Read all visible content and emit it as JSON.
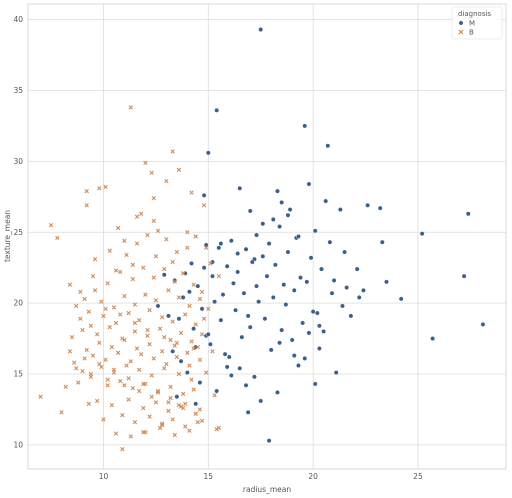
{
  "chart_data": {
    "type": "scatter",
    "xlabel": "radius_mean",
    "ylabel": "texture_mean",
    "xlim": [
      6.4,
      29.2
    ],
    "ylim": [
      8.3,
      41.1
    ],
    "xticks": [
      10,
      15,
      20,
      25
    ],
    "yticks": [
      10,
      15,
      20,
      25,
      30,
      35,
      40
    ],
    "grid": true,
    "legend": {
      "title": "diagnosis",
      "placement": "top-right",
      "entries": [
        {
          "label": "M",
          "marker": "circle",
          "color": "#3a5f8a"
        },
        {
          "label": "B",
          "marker": "x",
          "color": "#d08c59"
        }
      ]
    },
    "series": [
      {
        "name": "M",
        "color": "#3a5f8a",
        "marker": "circle",
        "x": [
          17.5,
          15.4,
          19.6,
          20.7,
          15.0,
          14.8,
          16.5,
          18.9,
          18.3,
          19.8,
          20.6,
          21.3,
          22.6,
          23.2,
          23.3,
          25.2,
          27.4,
          27.2,
          28.1,
          25.7,
          24.2,
          23.5,
          22.1,
          21.5,
          20.8,
          20.1,
          19.2,
          18.4,
          17.9,
          17.2,
          16.8,
          16.1,
          15.5,
          14.9,
          14.2,
          13.9,
          13.4,
          12.9,
          12.6,
          13.1,
          13.8,
          14.5,
          15.2,
          15.9,
          16.4,
          17.1,
          17.6,
          18.2,
          18.8,
          19.3,
          19.9,
          20.4,
          21.0,
          21.6,
          22.4,
          19.4,
          18.6,
          17.8,
          17.3,
          16.7,
          16.2,
          15.7,
          15.3,
          14.7,
          14.1,
          13.6,
          14.3,
          14.9,
          15.6,
          16.3,
          16.9,
          17.4,
          18.1,
          18.7,
          19.1,
          19.7,
          20.2,
          20.9,
          21.4,
          22.2,
          15.1,
          15.8,
          16.6,
          17.0,
          17.7,
          18.5,
          19.0,
          19.5,
          20.0,
          20.5,
          13.3,
          13.7,
          14.4,
          15.0,
          16.0,
          16.5,
          17.2,
          18.0,
          18.4,
          19.1,
          19.8,
          20.3,
          14.0,
          14.6,
          15.4,
          16.1,
          16.8,
          17.5,
          18.3,
          19.3,
          15.2,
          16.4,
          17.3,
          18.1,
          18.8,
          14.8,
          15.6,
          17.0,
          17.6,
          18.5,
          20.1,
          21.1,
          17.9,
          16.9,
          15.9,
          14.4,
          13.5,
          20.3,
          21.8,
          19.6
        ],
        "y": [
          39.3,
          33.6,
          32.5,
          31.1,
          30.6,
          27.6,
          28.1,
          26.6,
          27.9,
          28.4,
          27.2,
          26.6,
          26.9,
          26.7,
          24.3,
          24.9,
          26.3,
          21.9,
          18.5,
          17.5,
          20.3,
          21.5,
          22.4,
          23.6,
          24.3,
          25.1,
          24.6,
          25.4,
          24.2,
          23.1,
          23.8,
          24.4,
          23.9,
          24.1,
          22.8,
          22.1,
          21.6,
          22.0,
          19.8,
          19.1,
          20.4,
          21.2,
          21.9,
          22.6,
          22.2,
          22.9,
          23.3,
          22.7,
          23.6,
          24.7,
          23.2,
          22.4,
          21.6,
          21.1,
          20.9,
          21.8,
          21.3,
          21.9,
          21.2,
          20.7,
          21.4,
          20.6,
          20.1,
          19.6,
          20.8,
          18.9,
          18.2,
          17.7,
          18.8,
          19.5,
          19.1,
          20.1,
          20.4,
          19.9,
          20.9,
          21.5,
          19.3,
          20.7,
          19.8,
          20.4,
          17.1,
          16.4,
          17.6,
          18.3,
          18.9,
          18.1,
          17.4,
          18.6,
          19.4,
          18.0,
          16.6,
          15.9,
          16.9,
          17.8,
          16.2,
          15.4,
          14.8,
          16.7,
          17.2,
          16.3,
          17.9,
          16.8,
          15.1,
          14.4,
          13.8,
          14.9,
          14.2,
          13.1,
          13.7,
          15.6,
          22.9,
          23.5,
          24.8,
          25.9,
          26.2,
          22.5,
          24.2,
          26.5,
          25.6,
          27.1,
          14.3,
          15.1,
          10.3,
          12.3,
          15.5,
          12.9,
          13.4,
          18.4,
          19.1,
          16.1
        ]
      },
      {
        "name": "B",
        "color": "#d08c59",
        "marker": "x",
        "x": [
          11.3,
          12.0,
          12.3,
          13.3,
          10.1,
          9.8,
          9.2,
          7.5,
          7.8,
          8.4,
          8.9,
          9.5,
          10.6,
          11.1,
          11.6,
          12.1,
          12.6,
          13.0,
          13.5,
          14.0,
          14.4,
          14.9,
          15.1,
          15.5,
          9.1,
          9.6,
          10.2,
          10.8,
          11.4,
          11.9,
          12.4,
          12.9,
          13.4,
          13.8,
          14.3,
          14.7,
          8.7,
          9.3,
          9.9,
          10.5,
          11.0,
          11.5,
          12.0,
          12.5,
          13.1,
          13.6,
          14.1,
          14.6,
          15.0,
          8.9,
          9.4,
          10.0,
          10.6,
          11.2,
          11.7,
          12.2,
          12.8,
          13.3,
          13.9,
          14.4,
          14.8,
          8.5,
          9.0,
          9.7,
          10.3,
          10.9,
          11.5,
          12.1,
          12.7,
          13.2,
          13.7,
          14.2,
          14.7,
          9.2,
          9.8,
          10.4,
          11.0,
          11.6,
          12.2,
          12.8,
          13.4,
          14.0,
          14.5,
          8.6,
          9.5,
          10.1,
          10.7,
          11.3,
          11.8,
          12.4,
          13.0,
          13.5,
          14.1,
          14.6,
          15.2,
          9.0,
          9.9,
          10.5,
          11.1,
          11.7,
          12.3,
          12.9,
          13.6,
          14.2,
          14.9,
          8.2,
          8.8,
          9.4,
          10.2,
          10.8,
          11.4,
          12.0,
          12.6,
          13.2,
          13.8,
          14.3,
          15.3,
          9.7,
          10.4,
          11.2,
          11.9,
          12.5,
          13.1,
          13.7,
          14.4,
          7.0,
          8.0,
          9.3,
          10.0,
          10.9,
          11.5,
          12.2,
          12.8,
          13.3,
          13.9,
          14.5,
          15.4,
          10.6,
          11.3,
          12.0,
          12.7,
          13.4,
          14.1,
          9.6,
          10.3,
          11.0,
          11.8,
          12.4,
          13.0,
          13.6,
          14.2,
          14.8,
          8.4,
          9.1,
          9.8,
          10.5,
          11.2,
          11.9,
          12.6,
          13.2,
          13.9,
          14.6,
          10.1,
          10.8,
          11.5,
          12.1,
          12.9,
          13.5,
          14.3,
          8.7,
          9.4,
          10.2,
          11.0,
          11.7,
          12.3,
          13.1,
          13.8,
          14.4,
          11.4,
          12.5,
          13.3,
          14.0,
          10.9,
          11.9,
          12.8,
          13.6,
          14.7,
          15.5,
          9.2,
          10.7,
          11.6,
          12.4
        ],
        "y": [
          33.8,
          29.9,
          29.2,
          30.7,
          28.2,
          28.1,
          27.9,
          25.5,
          24.6,
          21.3,
          20.8,
          21.9,
          22.3,
          23.4,
          24.2,
          24.8,
          25.1,
          24.5,
          23.6,
          25.0,
          24.7,
          23.9,
          22.8,
          21.9,
          20.3,
          20.9,
          21.4,
          22.2,
          21.7,
          22.5,
          21.8,
          22.4,
          21.5,
          22.1,
          21.3,
          20.8,
          19.8,
          19.4,
          20.1,
          19.7,
          20.5,
          19.9,
          20.6,
          20.2,
          20.9,
          20.4,
          19.8,
          20.3,
          19.6,
          18.9,
          18.4,
          19.1,
          18.6,
          19.3,
          18.8,
          19.5,
          19.0,
          18.7,
          19.2,
          18.5,
          18.9,
          17.6,
          18.1,
          17.8,
          18.3,
          17.5,
          18.0,
          17.7,
          18.2,
          17.4,
          17.9,
          17.3,
          17.8,
          16.7,
          17.2,
          16.9,
          17.4,
          16.8,
          17.1,
          16.6,
          17.0,
          16.5,
          16.9,
          15.8,
          16.3,
          16.0,
          16.5,
          15.9,
          16.4,
          16.1,
          15.7,
          16.2,
          15.6,
          16.0,
          16.6,
          15.2,
          15.5,
          15.1,
          15.6,
          15.3,
          14.9,
          15.4,
          15.0,
          14.6,
          15.1,
          14.1,
          14.4,
          14.8,
          14.2,
          14.5,
          14.0,
          14.3,
          13.8,
          14.1,
          13.6,
          13.9,
          13.5,
          13.1,
          12.8,
          13.2,
          12.6,
          13.0,
          12.4,
          12.7,
          12.2,
          13.4,
          12.3,
          12.9,
          11.8,
          12.1,
          11.6,
          12.0,
          11.5,
          11.8,
          11.3,
          11.6,
          11.1,
          10.8,
          10.6,
          10.9,
          11.2,
          10.7,
          11.0,
          23.1,
          23.7,
          24.4,
          26.3,
          27.4,
          28.6,
          29.4,
          27.8,
          26.9,
          16.6,
          16.1,
          15.7,
          15.3,
          14.7,
          14.3,
          13.7,
          13.3,
          12.9,
          12.5,
          19.6,
          19.2,
          18.6,
          18.1,
          17.6,
          17.2,
          16.8,
          15.4,
          15.0,
          14.6,
          14.2,
          13.8,
          13.4,
          13.0,
          12.6,
          12.2,
          22.7,
          23.3,
          22.9,
          23.9,
          9.7,
          10.9,
          11.4,
          12.8,
          11.7,
          11.2,
          26.9,
          25.3,
          26.1,
          25.8
        ]
      }
    ]
  }
}
